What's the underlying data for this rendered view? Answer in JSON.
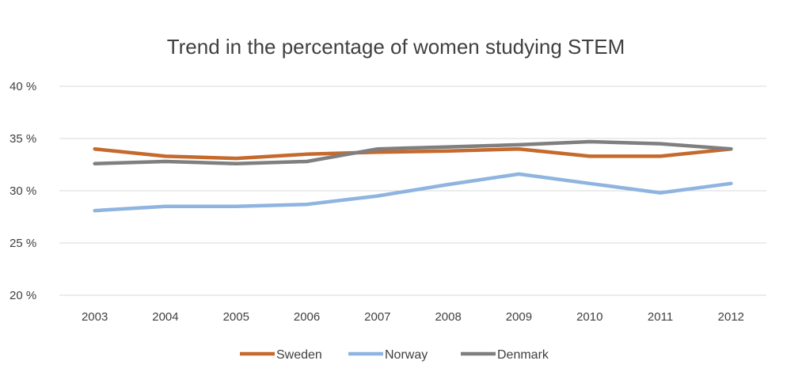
{
  "chart_data": {
    "type": "line",
    "title": "Trend in the percentage of women studying STEM",
    "categories": [
      "2003",
      "2004",
      "2005",
      "2006",
      "2007",
      "2008",
      "2009",
      "2010",
      "2011",
      "2012"
    ],
    "y_tick_labels": [
      "40 %",
      "35 %",
      "30 %",
      "25 %",
      "20 %"
    ],
    "y_ticks": [
      40,
      35,
      30,
      25,
      20
    ],
    "ylim": [
      20,
      40
    ],
    "grid": true,
    "legend_position": "bottom",
    "series": [
      {
        "name": "Sweden",
        "color": "#c5692c",
        "values": [
          34.0,
          33.3,
          33.1,
          33.5,
          33.7,
          33.8,
          34.0,
          33.3,
          33.3,
          34.0
        ]
      },
      {
        "name": "Norway",
        "color": "#8fb4e0",
        "values": [
          28.1,
          28.5,
          28.5,
          28.7,
          29.5,
          30.6,
          31.6,
          30.7,
          29.8,
          30.7
        ]
      },
      {
        "name": "Denmark",
        "color": "#7f7f7f",
        "values": [
          32.6,
          32.8,
          32.6,
          32.8,
          34.0,
          34.2,
          34.4,
          34.7,
          34.5,
          34.0
        ]
      }
    ]
  }
}
